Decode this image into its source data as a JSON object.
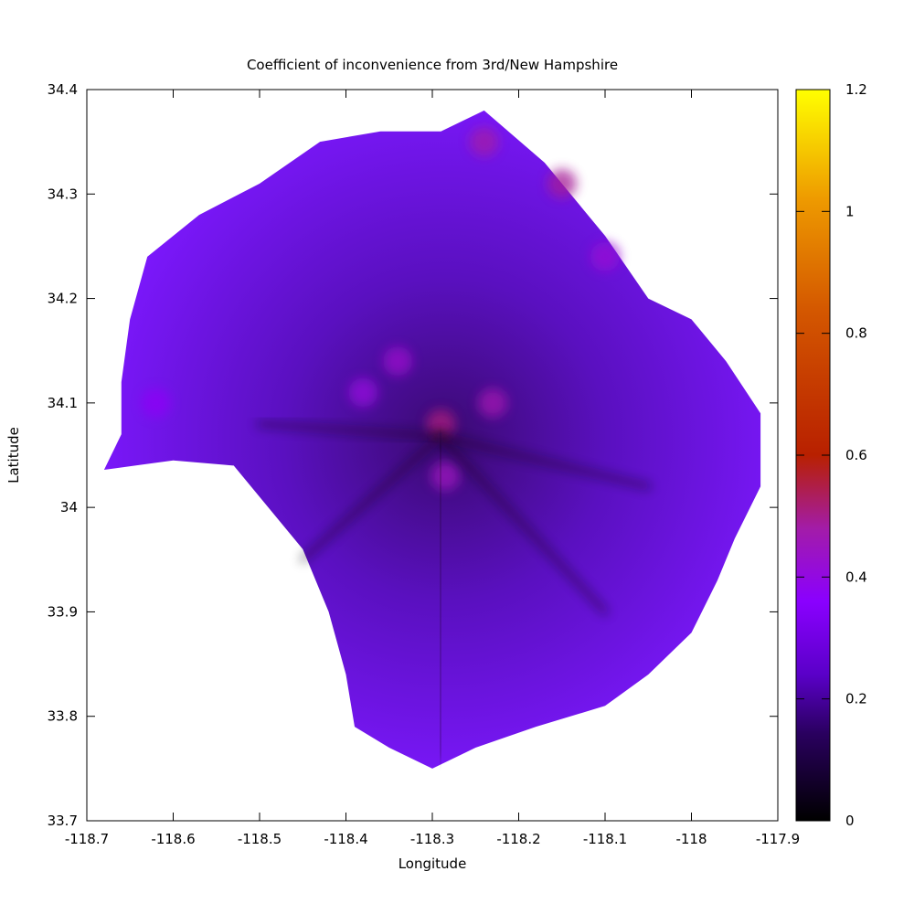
{
  "chart_data": {
    "type": "scatter",
    "title": "Coefficient of inconvenience from 3rd/New Hampshire",
    "xlabel": "Longitude",
    "ylabel": "Latitude",
    "xlim": [
      -118.7,
      -117.9
    ],
    "ylim": [
      33.7,
      34.4
    ],
    "x_ticks": [
      "-118.7",
      "-118.6",
      "-118.5",
      "-118.4",
      "-118.3",
      "-118.2",
      "-118.1",
      "-118",
      "-117.9"
    ],
    "y_ticks": [
      "33.7",
      "33.8",
      "33.9",
      "34",
      "34.1",
      "34.2",
      "34.3",
      "34.4"
    ],
    "grid": false,
    "origin": {
      "lon": -118.291,
      "lat": 34.068
    },
    "colorbar": {
      "range": [
        0,
        1.2
      ],
      "ticks": [
        "0",
        "0.2",
        "0.4",
        "0.6",
        "0.8",
        "1",
        "1.2"
      ],
      "colormap": [
        "#000000",
        "#4a0096",
        "#8a00ff",
        "#a31ca8",
        "#b82000",
        "#e06a00",
        "#ffff00"
      ]
    },
    "coverage_boundary": [
      [
        -118.68,
        34.036
      ],
      [
        -118.6,
        34.045
      ],
      [
        -118.53,
        34.04
      ],
      [
        -118.49,
        34.0
      ],
      [
        -118.45,
        33.96
      ],
      [
        -118.42,
        33.9
      ],
      [
        -118.4,
        33.84
      ],
      [
        -118.39,
        33.79
      ],
      [
        -118.35,
        33.77
      ],
      [
        -118.3,
        33.75
      ],
      [
        -118.25,
        33.77
      ],
      [
        -118.18,
        33.79
      ],
      [
        -118.1,
        33.81
      ],
      [
        -118.05,
        33.84
      ],
      [
        -118.0,
        33.88
      ],
      [
        -117.97,
        33.93
      ],
      [
        -117.95,
        33.97
      ],
      [
        -117.92,
        34.02
      ],
      [
        -117.92,
        34.09
      ],
      [
        -117.96,
        34.14
      ],
      [
        -118.0,
        34.18
      ],
      [
        -118.05,
        34.2
      ],
      [
        -118.1,
        34.26
      ],
      [
        -118.17,
        34.33
      ],
      [
        -118.24,
        34.38
      ],
      [
        -118.29,
        34.36
      ],
      [
        -118.36,
        34.36
      ],
      [
        -118.43,
        34.35
      ],
      [
        -118.5,
        34.31
      ],
      [
        -118.57,
        34.28
      ],
      [
        -118.63,
        34.24
      ],
      [
        -118.65,
        34.18
      ],
      [
        -118.66,
        34.12
      ],
      [
        -118.66,
        34.07
      ],
      [
        -118.68,
        34.036
      ]
    ],
    "hotspots": [
      {
        "lon": -118.24,
        "lat": 34.35,
        "value": 0.6
      },
      {
        "lon": -118.15,
        "lat": 34.31,
        "value": 0.62
      },
      {
        "lon": -118.1,
        "lat": 34.24,
        "value": 0.5
      },
      {
        "lon": -118.23,
        "lat": 34.1,
        "value": 0.58
      },
      {
        "lon": -118.38,
        "lat": 34.11,
        "value": 0.48
      },
      {
        "lon": -118.34,
        "lat": 34.14,
        "value": 0.52
      },
      {
        "lon": -118.29,
        "lat": 34.08,
        "value": 0.65
      },
      {
        "lon": -118.285,
        "lat": 34.03,
        "value": 0.55
      },
      {
        "lon": -118.62,
        "lat": 34.1,
        "value": 0.42
      }
    ]
  }
}
